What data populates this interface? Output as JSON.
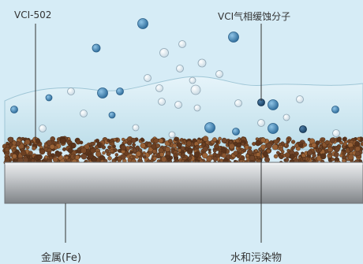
{
  "labels": {
    "vci_product": "VCI-502",
    "vci_molecules": "VCI气相缓蚀分子",
    "metal": "金属(Fe)",
    "water_pollutants": "水和污染物"
  },
  "colors": {
    "background": "#d6ecf6",
    "vci_layer": "#c4e1ec",
    "rust_particles": "#7a4d2c",
    "metal_plate": "#b9bcbf",
    "molecule_fill": "#3b84b8",
    "leader_line": "#333333"
  }
}
